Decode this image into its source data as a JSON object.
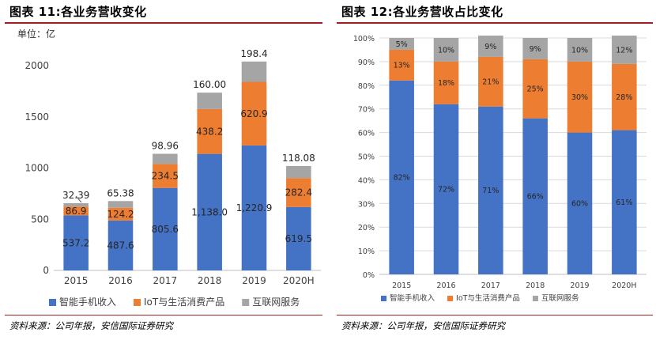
{
  "left": {
    "title": "图表 11:各业务营收变化",
    "unit": "单位：亿",
    "source": "资料来源：公司年报，安信国际证券研究"
  },
  "right": {
    "title": "图表 12:各业务营收占比变化",
    "source": "资料来源：公司年报，安信国际证券研究"
  },
  "colors": {
    "blue": "#4472C4",
    "orange": "#ED7D31",
    "gray": "#A5A5A5",
    "title_rule": "#9e1e22"
  },
  "chart_data": [
    {
      "type": "bar",
      "stacked": true,
      "title": "图表 11:各业务营收变化",
      "ylabel": "单位：亿",
      "categories": [
        "2015",
        "2016",
        "2017",
        "2018",
        "2019",
        "2020H"
      ],
      "ylim": [
        0,
        2000
      ],
      "yticks": [
        "0",
        "500",
        "1000",
        "1500",
        "2000"
      ],
      "series": [
        {
          "name": "智能手机收入",
          "values": [
            537.2,
            487.6,
            805.6,
            1138.0,
            1220.9,
            619.5
          ],
          "labels": [
            "537.2",
            "487.6",
            "805.6",
            "1,138.0",
            "1,220.9",
            "619.5"
          ]
        },
        {
          "name": "IoT与生活消费产品",
          "values": [
            86.9,
            124.2,
            234.5,
            438.2,
            620.9,
            282.4
          ],
          "labels": [
            "86.9",
            "124.2",
            "234.5",
            "438.2",
            "620.9",
            "282.4"
          ]
        },
        {
          "name": "互联网服务",
          "values": [
            32.39,
            65.38,
            98.96,
            160.0,
            198.4,
            118.08
          ],
          "labels": [
            "32.39",
            "65.38",
            "98.96",
            "160.00",
            "198.4",
            "118.08"
          ]
        }
      ]
    },
    {
      "type": "bar",
      "stacked": true,
      "percent": true,
      "title": "图表 12:各业务营收占比变化",
      "categories": [
        "2015",
        "2016",
        "2017",
        "2018",
        "2019",
        "2020H"
      ],
      "ylim": [
        0,
        100
      ],
      "yticks": [
        "0%",
        "10%",
        "20%",
        "30%",
        "40%",
        "50%",
        "60%",
        "70%",
        "80%",
        "90%",
        "100%"
      ],
      "series": [
        {
          "name": "智能手机收入",
          "values": [
            82,
            72,
            71,
            66,
            60,
            61
          ],
          "labels": [
            "82%",
            "72%",
            "71%",
            "66%",
            "60%",
            "61%"
          ]
        },
        {
          "name": "IoT与生活消费产品",
          "values": [
            13,
            18,
            21,
            25,
            30,
            28
          ],
          "labels": [
            "13%",
            "18%",
            "21%",
            "25%",
            "30%",
            "28%"
          ]
        },
        {
          "name": "互联网服务",
          "values": [
            5,
            10,
            9,
            9,
            10,
            12
          ],
          "labels": [
            "5%",
            "10%",
            "9%",
            "9%",
            "10%",
            "12%"
          ]
        }
      ]
    }
  ]
}
